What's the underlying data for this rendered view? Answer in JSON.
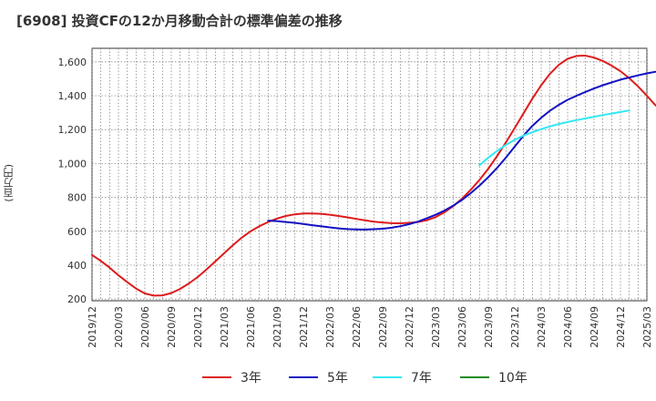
{
  "chart_data": {
    "type": "line",
    "title": "[6908]  投資CFの12か月移動合計の標準偏差の推移",
    "ylabel": "(百万円)",
    "xlabel": "",
    "ylim": [
      190,
      1680
    ],
    "yticks": [
      200,
      400,
      600,
      800,
      1000,
      1200,
      1400,
      1600
    ],
    "ytick_labels": [
      "200",
      "400",
      "600",
      "800",
      "1,000",
      "1,200",
      "1,400",
      "1,600"
    ],
    "xtick_labels": [
      "2019/12",
      "2020/03",
      "2020/06",
      "2020/09",
      "2020/12",
      "2021/03",
      "2021/06",
      "2021/09",
      "2021/12",
      "2022/03",
      "2022/06",
      "2022/09",
      "2022/12",
      "2023/03",
      "2023/06",
      "2023/09",
      "2023/12",
      "2024/03",
      "2024/06",
      "2024/09",
      "2024/12",
      "2025/03"
    ],
    "grid": true,
    "legend_position": "bottom",
    "series": [
      {
        "name": "3年",
        "color": "#dd1c1c",
        "start": "2019/12",
        "values": [
          460,
          425,
          385,
          340,
          300,
          262,
          233,
          220,
          222,
          235,
          260,
          292,
          330,
          375,
          422,
          470,
          518,
          562,
          600,
          630,
          655,
          675,
          690,
          700,
          705,
          705,
          703,
          698,
          690,
          682,
          673,
          665,
          657,
          652,
          648,
          647,
          650,
          655,
          665,
          683,
          712,
          748,
          792,
          845,
          903,
          970,
          1045,
          1125,
          1210,
          1297,
          1383,
          1462,
          1530,
          1582,
          1618,
          1635,
          1637,
          1625,
          1605,
          1578,
          1545,
          1503,
          1455,
          1400,
          1342
        ]
      },
      {
        "name": "5年",
        "color": "#1111c4",
        "start": "2021/08",
        "values": [
          663,
          660,
          655,
          650,
          643,
          636,
          630,
          623,
          617,
          613,
          611,
          610,
          612,
          615,
          621,
          630,
          642,
          657,
          676,
          697,
          722,
          751,
          785,
          825,
          870,
          920,
          975,
          1035,
          1100,
          1165,
          1222,
          1270,
          1312,
          1346,
          1376,
          1400,
          1422,
          1443,
          1462,
          1479,
          1495,
          1508,
          1520,
          1532,
          1542
        ]
      },
      {
        "name": "7年",
        "color": "#33e8f2",
        "start": "2023/08",
        "values": [
          990,
          1035,
          1075,
          1110,
          1140,
          1165,
          1185,
          1203,
          1219,
          1233,
          1245,
          1256,
          1266,
          1276,
          1286,
          1295,
          1304,
          1313
        ]
      },
      {
        "name": "10年",
        "color": "#1e8c1e",
        "start": "2019/12",
        "values": []
      }
    ]
  }
}
